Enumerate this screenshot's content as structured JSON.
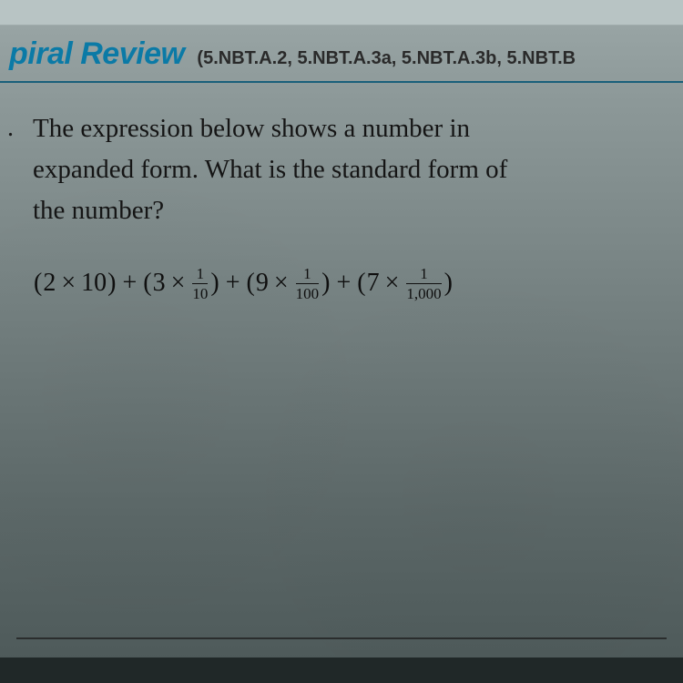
{
  "header": {
    "section_title": "piral Review",
    "standards": "(5.NBT.A.2, 5.NBT.A.3a, 5.NBT.A.3b, 5.NBT.B",
    "title_color": "#0b7aa6",
    "rule_color": "#1a5f7a"
  },
  "question": {
    "bullet": ".",
    "text_line1": "The expression below shows a number in",
    "text_line2": "expanded form. What is the standard form of",
    "text_line3": "the number?",
    "font_size_pt": 22,
    "text_color": "#151515"
  },
  "expression": {
    "font_size_pt": 21,
    "terms": [
      {
        "open": "(",
        "a": "2",
        "op": "×",
        "b_whole": "10",
        "close": ")"
      },
      {
        "plus": "+",
        "open": "(",
        "a": "3",
        "op": "×",
        "frac_num": "1",
        "frac_den": "10",
        "close": ")"
      },
      {
        "plus": "+",
        "open": "(",
        "a": "9",
        "op": "×",
        "frac_num": "1",
        "frac_den": "100",
        "close": ")"
      },
      {
        "plus": "+",
        "open": "(",
        "a": "7",
        "op": "×",
        "frac_num": "1",
        "frac_den": "1,000",
        "close": ")"
      }
    ]
  },
  "colors": {
    "page_bg_top": "#9ca8a8",
    "page_bg_bottom": "#4c5858",
    "text": "#151515",
    "rule": "#1a1a1a"
  }
}
